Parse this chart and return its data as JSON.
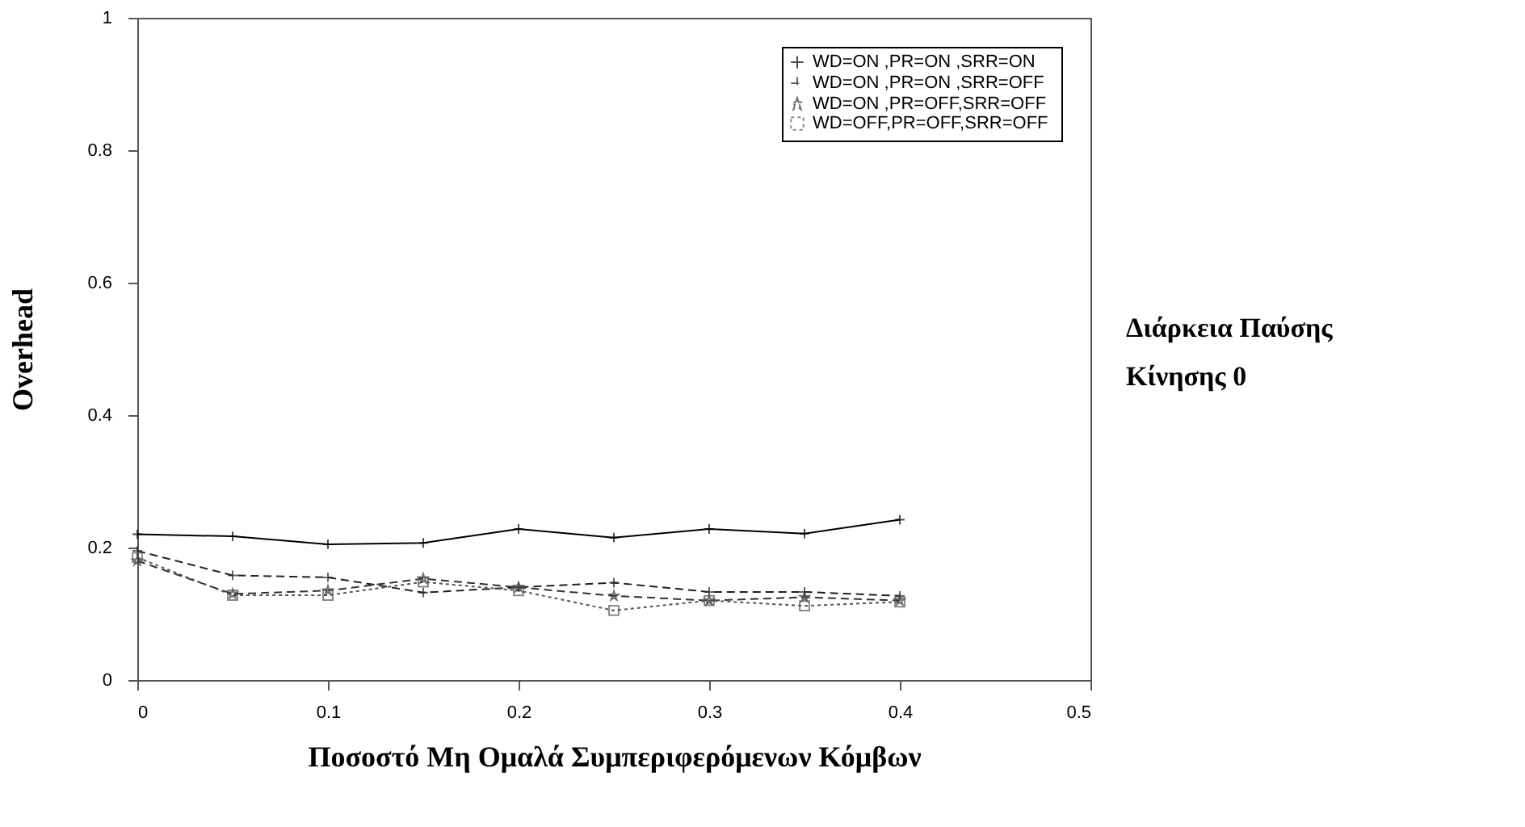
{
  "chart_data": {
    "type": "line",
    "xlabel": "Ποσοστό Μη Ομαλά Συμπεριφερόμενων Κόμβων",
    "ylabel": "Overhead",
    "annotations": [
      "Διάρκεια Παύσης Κίνησης 0"
    ],
    "x": [
      0,
      0.05,
      0.1,
      0.15,
      0.2,
      0.25,
      0.3,
      0.35,
      0.4
    ],
    "series": [
      {
        "name": "WD=ON  ,PR=ON  ,SRR=ON",
        "color": "#000000",
        "marker": "cross",
        "line_style": "solid",
        "values": [
          0.22,
          0.217,
          0.205,
          0.207,
          0.228,
          0.215,
          0.228,
          0.221,
          0.242
        ]
      },
      {
        "name": "WD=ON  ,PR=ON  ,SRR=OFF",
        "color": "#222222",
        "marker": "cross",
        "line_style": "dashed",
        "values": [
          0.195,
          0.158,
          0.155,
          0.132,
          0.14,
          0.147,
          0.133,
          0.133,
          0.127
        ]
      },
      {
        "name": "WD=ON  ,PR=OFF,SRR=OFF",
        "color": "#333333",
        "marker": "star",
        "line_style": "dashed",
        "values": [
          0.18,
          0.13,
          0.135,
          0.153,
          0.14,
          0.127,
          0.12,
          0.125,
          0.12
        ]
      },
      {
        "name": "WD=OFF,PR=OFF,SRR=OFF",
        "color": "#555555",
        "marker": "square",
        "line_style": "dotted",
        "values": [
          0.185,
          0.128,
          0.128,
          0.148,
          0.135,
          0.105,
          0.12,
          0.112,
          0.118
        ]
      }
    ],
    "xlim": [
      0,
      0.5
    ],
    "xticks": [
      0,
      0.1,
      0.2,
      0.3,
      0.4,
      0.5
    ],
    "ylim": [
      0,
      1
    ],
    "yticks": [
      0,
      0.2,
      0.4,
      0.6,
      0.8,
      1
    ],
    "legend": "top right"
  }
}
